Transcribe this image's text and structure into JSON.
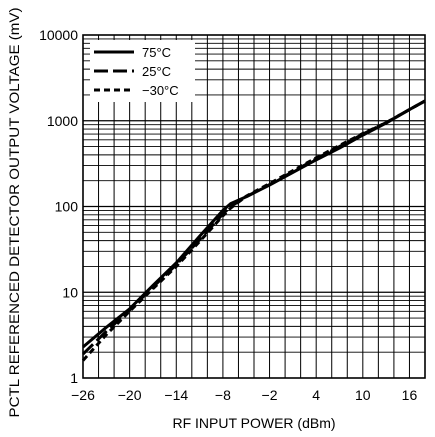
{
  "chart_data": {
    "type": "line",
    "title": "",
    "xlabel": "RF INPUT POWER (dBm)",
    "ylabel": "PCTL REFERENCED DETECTOR OUTPUT VOLTAGE (mV)",
    "xlim": [
      -26,
      18
    ],
    "ylim": [
      1,
      10000
    ],
    "yscale": "log",
    "grid": true,
    "legend_position": "top-left",
    "xticks": [
      -26,
      -20,
      -14,
      -8,
      -2,
      4,
      10,
      16
    ],
    "xtick_labels": [
      "−26",
      "−20",
      "−14",
      "−8",
      "−2",
      "4",
      "10",
      "16"
    ],
    "yticks": [
      1,
      10,
      100,
      1000,
      10000
    ],
    "ytick_labels": [
      "1",
      "10",
      "100",
      "1000",
      "10000"
    ],
    "series": [
      {
        "name": "75°C",
        "line_style": "solid",
        "x": [
          -26,
          -23,
          -20,
          -17,
          -14,
          -11,
          -8,
          -7,
          -5,
          -2,
          1,
          4,
          7,
          10,
          13,
          16,
          18
        ],
        "y": [
          2.3,
          3.9,
          6.4,
          12,
          22,
          45,
          90,
          108,
          130,
          178,
          250,
          350,
          480,
          680,
          940,
          1350,
          1700
        ]
      },
      {
        "name": "25°C",
        "line_style": "long-dash",
        "x": [
          -26,
          -23,
          -20,
          -17,
          -14,
          -11,
          -8,
          -7,
          -5,
          -2,
          1,
          4,
          7,
          10,
          13,
          16,
          18
        ],
        "y": [
          1.9,
          3.5,
          6.2,
          11.5,
          21,
          41,
          82,
          100,
          130,
          180,
          255,
          360,
          500,
          700,
          950,
          1350,
          1700
        ]
      },
      {
        "name": "−30°C",
        "line_style": "short-dash",
        "x": [
          -26,
          -23,
          -20,
          -17,
          -14,
          -11,
          -8,
          -7,
          -5,
          -2,
          1,
          4,
          7,
          10,
          13,
          16,
          18
        ],
        "y": [
          1.6,
          3.2,
          6.0,
          11,
          20,
          39,
          78,
          96,
          132,
          185,
          262,
          370,
          515,
          710,
          950,
          1350,
          1700
        ]
      }
    ]
  }
}
